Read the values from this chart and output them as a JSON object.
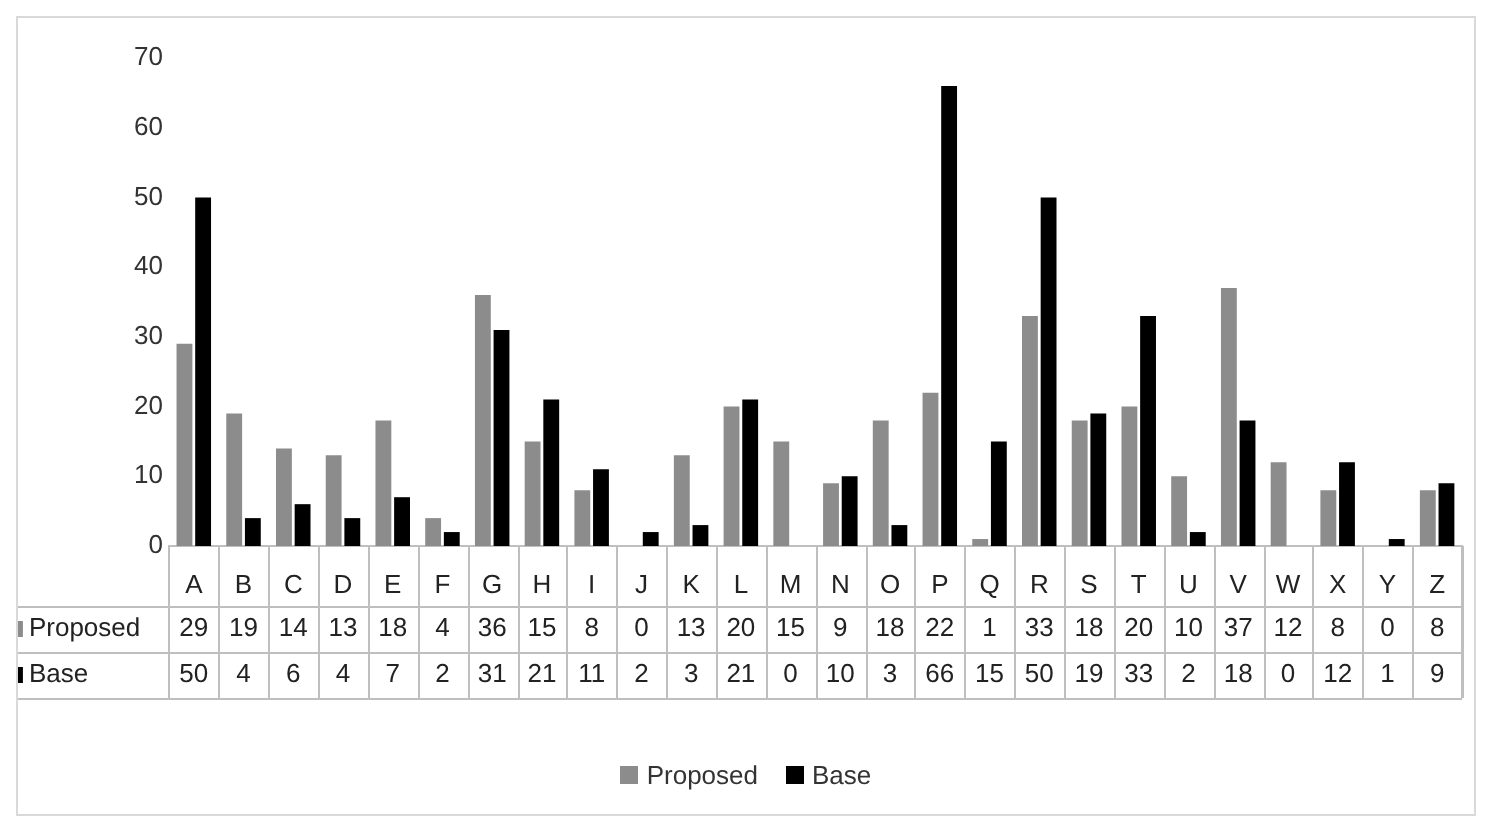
{
  "chart_data": {
    "type": "bar",
    "categories": [
      "A",
      "B",
      "C",
      "D",
      "E",
      "F",
      "G",
      "H",
      "I",
      "J",
      "K",
      "L",
      "M",
      "N",
      "O",
      "P",
      "Q",
      "R",
      "S",
      "T",
      "U",
      "V",
      "W",
      "X",
      "Y",
      "Z"
    ],
    "series": [
      {
        "name": "Proposed",
        "color": "#8c8c8c",
        "values": [
          29,
          19,
          14,
          13,
          18,
          4,
          36,
          15,
          8,
          0,
          13,
          20,
          15,
          9,
          18,
          22,
          1,
          33,
          18,
          20,
          10,
          37,
          12,
          8,
          0,
          8
        ]
      },
      {
        "name": "Base",
        "color": "#000000",
        "values": [
          50,
          4,
          6,
          4,
          7,
          2,
          31,
          21,
          11,
          2,
          3,
          21,
          0,
          10,
          3,
          66,
          15,
          50,
          19,
          33,
          2,
          18,
          0,
          12,
          1,
          9
        ]
      }
    ],
    "ylim": [
      0,
      70
    ],
    "yticks": [
      0,
      10,
      20,
      30,
      40,
      50,
      60,
      70
    ],
    "grid": false,
    "legend": "bottom",
    "data_labels": true
  }
}
